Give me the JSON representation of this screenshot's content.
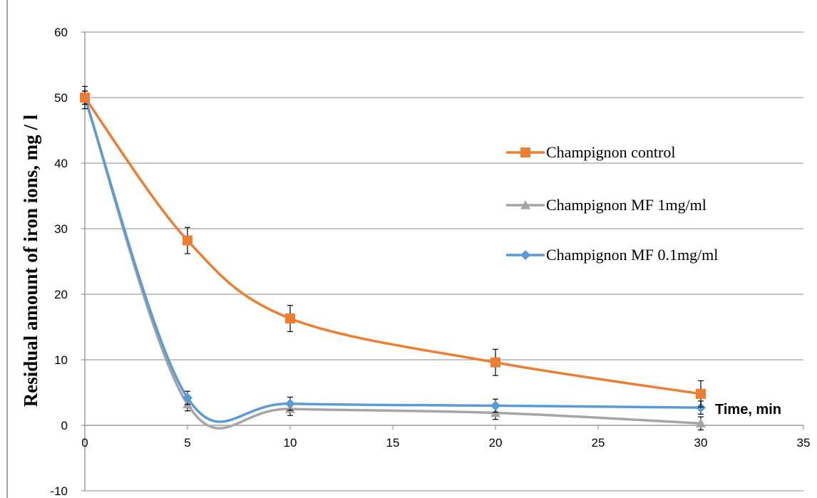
{
  "chart_data": {
    "type": "line",
    "xlabel": "Time, min",
    "ylabel": "Residual amount of iron ions, mg / l",
    "xlim": [
      0,
      35
    ],
    "ylim": [
      -10,
      60
    ],
    "xticks": [
      0,
      5,
      10,
      15,
      20,
      25,
      30,
      35
    ],
    "yticks": [
      -10,
      0,
      10,
      20,
      30,
      40,
      50,
      60
    ],
    "grid": "horizontal",
    "smooth": true,
    "legend_position": "right",
    "series": [
      {
        "name": "Champignon control",
        "color": "#ED7D31",
        "marker": "square",
        "x": [
          0,
          5,
          10,
          20,
          30
        ],
        "y": [
          50,
          28.2,
          16.3,
          9.6,
          4.8
        ],
        "error": [
          1.7,
          2.0,
          2.0,
          2.0,
          2.0
        ]
      },
      {
        "name": "Champignon MF 1mg/ml",
        "color": "#A5A5A5",
        "marker": "triangle",
        "x": [
          0,
          5,
          10,
          20,
          30
        ],
        "y": [
          50,
          3.2,
          2.5,
          1.9,
          0.3
        ],
        "error": [
          1.0,
          1.0,
          1.0,
          1.0,
          1.0
        ]
      },
      {
        "name": "Champignon MF 0.1mg/ml",
        "color": "#5B9BD5",
        "marker": "diamond",
        "x": [
          0,
          5,
          10,
          20,
          30
        ],
        "y": [
          50,
          4.2,
          3.3,
          3.0,
          2.7
        ],
        "error": [
          1.0,
          1.0,
          1.0,
          1.0,
          1.0
        ]
      }
    ]
  }
}
